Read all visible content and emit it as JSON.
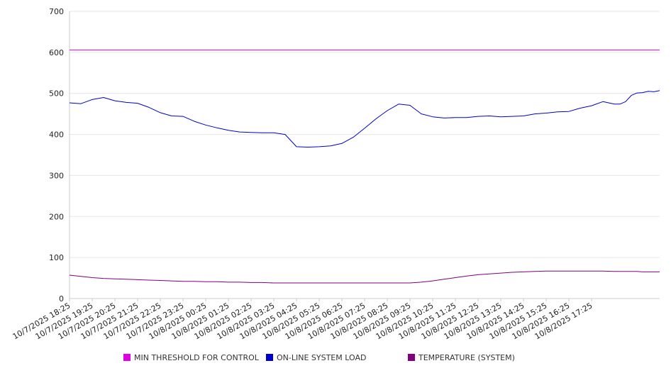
{
  "chart_data": {
    "type": "line",
    "title": "",
    "xlabel": "",
    "ylabel": "",
    "ylim": [
      0,
      700
    ],
    "y_ticks": [
      0,
      100,
      200,
      300,
      400,
      500,
      600,
      700
    ],
    "grid": "horizontal",
    "legend_position": "bottom",
    "x_labels": [
      "10/7/2025 18:25",
      "10/7/2025 19:25",
      "10/7/2025 20:25",
      "10/7/2025 21:25",
      "10/7/2025 22:25",
      "10/7/2025 23:25",
      "10/8/2025 00:25",
      "10/8/2025 01:25",
      "10/8/2025 02:25",
      "10/8/2025 03:25",
      "10/8/2025 04:25",
      "10/8/2025 05:25",
      "10/8/2025 06:25",
      "10/8/2025 07:25",
      "10/8/2025 08:25",
      "10/8/2025 09:25",
      "10/8/2025 10:25",
      "10/8/2025 11:25",
      "10/8/2025 12:25",
      "10/8/2025 13:25",
      "10/8/2025 14:25",
      "10/8/2025 15:25",
      "10/8/2025 16:25",
      "10/8/2025 17:25"
    ],
    "x_hours": [
      0,
      0.5,
      1,
      1.5,
      2,
      2.5,
      3,
      3.5,
      4,
      4.5,
      5,
      5.5,
      6,
      6.5,
      7,
      7.5,
      8,
      8.5,
      9,
      9.5,
      10,
      10.5,
      11,
      11.5,
      12,
      12.5,
      13,
      13.5,
      14,
      14.5,
      15,
      15.5,
      16,
      16.5,
      17,
      17.5,
      18,
      18.5,
      19,
      19.5,
      20,
      20.5,
      21,
      21.5,
      22,
      22.5,
      23,
      23.5,
      24
    ],
    "series": [
      {
        "name": "MIN THRESHOLD FOR CONTROL",
        "color": "#e000e0",
        "values": [
          606,
          606,
          606,
          606,
          606,
          606,
          606,
          606,
          606,
          606,
          606,
          606,
          606,
          606,
          606,
          606,
          606,
          606,
          606,
          606,
          606,
          606,
          606,
          606,
          606,
          606,
          606,
          606,
          606,
          606,
          606,
          606,
          606,
          606,
          606,
          606,
          606,
          606,
          606,
          606,
          606,
          606,
          606,
          606,
          606,
          606,
          606,
          606,
          606
        ]
      },
      {
        "name": "ON-LINE SYSTEM LOAD",
        "color": "#0000cc",
        "values": [
          477,
          475,
          485,
          490,
          482,
          478,
          476,
          466,
          453,
          445,
          444,
          432,
          423,
          416,
          410,
          406,
          405,
          404,
          404,
          400,
          370,
          369,
          370,
          372,
          378,
          393,
          415,
          438,
          458,
          474,
          471,
          450,
          443,
          440,
          441,
          441,
          444,
          445,
          443,
          444,
          445,
          450,
          452,
          455,
          456,
          464,
          470,
          480,
          474
        ]
      },
      {
        "name": "TEMPERATURE (SYSTEM)",
        "color": "#800080",
        "values": [
          57,
          54,
          51,
          49,
          48,
          47,
          46,
          45,
          44,
          43,
          42,
          42,
          41,
          41,
          40,
          40,
          39,
          39,
          38,
          38,
          38,
          38,
          38,
          38,
          38,
          38,
          38,
          38,
          38,
          38,
          38,
          40,
          43,
          47,
          51,
          55,
          58,
          60,
          62,
          64,
          65,
          66,
          67,
          67,
          67,
          67,
          67,
          67,
          66
        ]
      }
    ],
    "tail": {
      "x_hours": [
        24.25,
        24.5,
        24.75,
        25,
        25.25,
        25.5,
        25.75,
        26
      ],
      "load": [
        474,
        480,
        495,
        501,
        502,
        505,
        504,
        507
      ],
      "temperature": [
        66,
        66,
        66,
        66,
        65,
        65,
        65,
        65
      ],
      "threshold": [
        606,
        606,
        606,
        606,
        606,
        606,
        606,
        606
      ]
    }
  }
}
